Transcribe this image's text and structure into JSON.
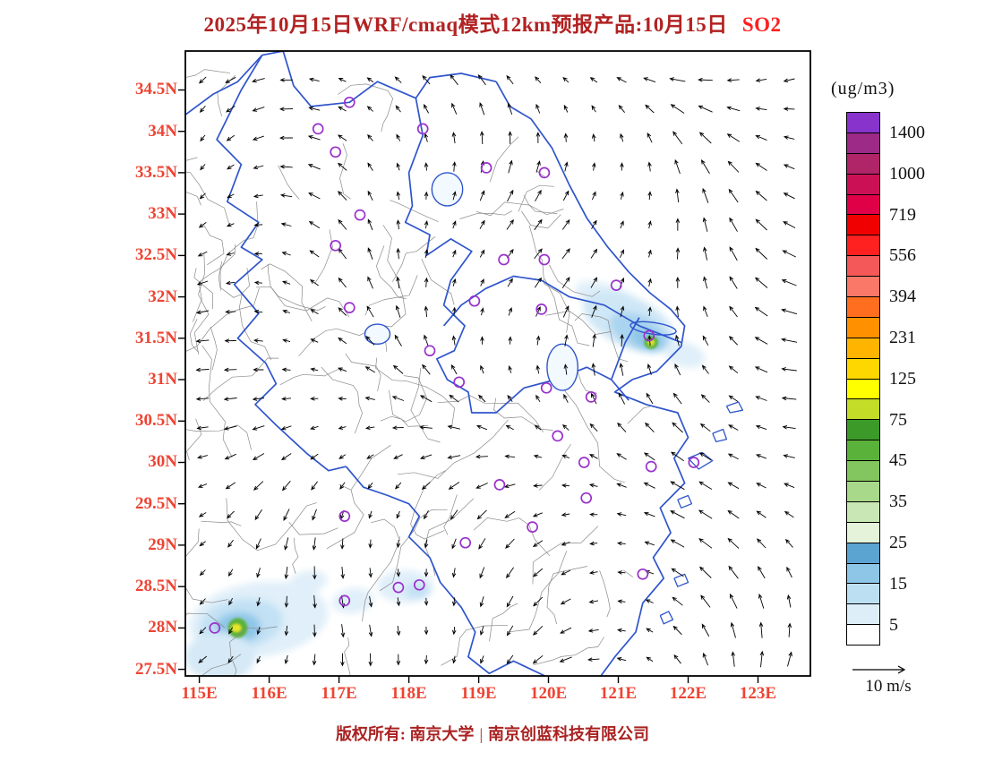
{
  "title": {
    "main": "2025年10月15日WRF/cmaq模式12km预报产品:10月15日",
    "species": "SO2"
  },
  "legend": {
    "title": "(ug/m3)",
    "labels": [
      "1400",
      "1000",
      "719",
      "556",
      "394",
      "231",
      "125",
      "75",
      "45",
      "35",
      "25",
      "15",
      "5"
    ],
    "colors_top_to_bottom": [
      "#8833cc",
      "#9c2a86",
      "#b02468",
      "#cc1055",
      "#e00048",
      "#f00000",
      "#ff2020",
      "#f55858",
      "#fa7868",
      "#ff6e1e",
      "#ff9000",
      "#ffb400",
      "#ffd700",
      "#ffff00",
      "#c2dc28",
      "#3c9a28",
      "#5bb23b",
      "#83c55f",
      "#a8d88a",
      "#c9e7b4",
      "#e4f3da",
      "#5ba3d0",
      "#8ec6e8",
      "#bcdff2",
      "#ddeef9",
      "#ffffff"
    ]
  },
  "wind_scale": {
    "label": "10 m/s"
  },
  "axes": {
    "lat_ticks": [
      "34.5N",
      "34N",
      "33.5N",
      "33N",
      "32.5N",
      "32N",
      "31.5N",
      "31N",
      "30.5N",
      "30N",
      "29.5N",
      "29N",
      "28.5N",
      "28N",
      "27.5N"
    ],
    "lat_values": [
      34.5,
      34,
      33.5,
      33,
      32.5,
      32,
      31.5,
      31,
      30.5,
      30,
      29.5,
      29,
      28.5,
      28,
      27.5
    ],
    "lon_ticks": [
      "115E",
      "116E",
      "117E",
      "118E",
      "119E",
      "120E",
      "121E",
      "122E",
      "123E"
    ],
    "lon_values": [
      115,
      116,
      117,
      118,
      119,
      120,
      121,
      122,
      123
    ]
  },
  "footer": {
    "copyright": "版权所有: 南京大学",
    "separator": "|",
    "company": "南京创蓝科技有限公司"
  },
  "map": {
    "city_markers": [
      [
        117.15,
        34.35
      ],
      [
        116.7,
        34.03
      ],
      [
        118.2,
        34.03
      ],
      [
        116.95,
        33.75
      ],
      [
        119.11,
        33.56
      ],
      [
        119.94,
        33.5
      ],
      [
        117.3,
        32.99
      ],
      [
        116.95,
        32.62
      ],
      [
        119.36,
        32.45
      ],
      [
        119.94,
        32.45
      ],
      [
        120.97,
        32.14
      ],
      [
        118.94,
        31.95
      ],
      [
        117.15,
        31.87
      ],
      [
        119.9,
        31.85
      ],
      [
        121.44,
        31.53
      ],
      [
        118.3,
        31.35
      ],
      [
        118.72,
        30.97
      ],
      [
        119.97,
        30.9
      ],
      [
        120.61,
        30.79
      ],
      [
        120.13,
        30.32
      ],
      [
        120.51,
        30.0
      ],
      [
        121.47,
        29.95
      ],
      [
        122.08,
        30.0
      ],
      [
        119.3,
        29.73
      ],
      [
        120.54,
        29.57
      ],
      [
        117.08,
        29.35
      ],
      [
        119.77,
        29.22
      ],
      [
        118.81,
        29.03
      ],
      [
        117.85,
        28.49
      ],
      [
        118.15,
        28.52
      ],
      [
        117.08,
        28.33
      ],
      [
        115.22,
        28.0
      ],
      [
        121.35,
        28.65
      ]
    ],
    "so2_patches": [
      {
        "c": [
          120.9,
          31.95
        ],
        "rx": 0.55,
        "ry": 0.18,
        "rot": 22,
        "color": "#e0eff9",
        "core": false
      },
      {
        "c": [
          121.15,
          31.7
        ],
        "rx": 0.7,
        "ry": 0.3,
        "rot": 25,
        "color": "#cfe7f6",
        "core": false
      },
      {
        "c": [
          121.3,
          31.57
        ],
        "rx": 0.45,
        "ry": 0.2,
        "rot": 25,
        "color": "#aad4ef",
        "core": false
      },
      {
        "c": [
          121.42,
          31.49
        ],
        "rx": 0.24,
        "ry": 0.12,
        "rot": 25,
        "color": "#8ec6e8",
        "core": false
      },
      {
        "c": [
          121.95,
          31.3
        ],
        "rx": 0.3,
        "ry": 0.15,
        "rot": 15,
        "color": "#e0eff9",
        "core": false
      },
      {
        "c": [
          121.47,
          31.45
        ],
        "rx": 0.1,
        "ry": 0.08,
        "rot": 0,
        "color": "#5bb23b",
        "core": true
      },
      {
        "c": [
          121.47,
          31.45
        ],
        "rx": 0.05,
        "ry": 0.04,
        "rot": 0,
        "color": "#d8e430",
        "core": true
      },
      {
        "c": [
          115.85,
          28.1
        ],
        "rx": 1.0,
        "ry": 0.45,
        "rot": -8,
        "color": "#e0eff9",
        "core": false
      },
      {
        "c": [
          115.6,
          28.05
        ],
        "rx": 0.6,
        "ry": 0.3,
        "rot": -8,
        "color": "#c3e1f4",
        "core": false
      },
      {
        "c": [
          115.55,
          28.0
        ],
        "rx": 0.33,
        "ry": 0.19,
        "rot": -5,
        "color": "#8ec6e8",
        "core": false
      },
      {
        "c": [
          115.3,
          27.65
        ],
        "rx": 0.5,
        "ry": 0.3,
        "rot": 0,
        "color": "#d5e9f6",
        "core": false
      },
      {
        "c": [
          116.55,
          28.55
        ],
        "rx": 0.28,
        "ry": 0.14,
        "rot": -12,
        "color": "#e0eff9",
        "core": false
      },
      {
        "c": [
          117.2,
          28.33
        ],
        "rx": 0.3,
        "ry": 0.15,
        "rot": -8,
        "color": "#e0eff9",
        "core": false
      },
      {
        "c": [
          117.95,
          28.5
        ],
        "rx": 0.4,
        "ry": 0.2,
        "rot": 0,
        "color": "#e0eff9",
        "core": false
      },
      {
        "c": [
          118.12,
          28.45
        ],
        "rx": 0.18,
        "ry": 0.1,
        "rot": 0,
        "color": "#c3e1f4",
        "core": false
      },
      {
        "c": [
          115.55,
          28.0
        ],
        "rx": 0.14,
        "ry": 0.12,
        "rot": 0,
        "color": "#5bb23b",
        "core": true
      },
      {
        "c": [
          115.53,
          28.0
        ],
        "rx": 0.07,
        "ry": 0.05,
        "rot": 0,
        "color": "#e6e62a",
        "core": true
      }
    ]
  }
}
